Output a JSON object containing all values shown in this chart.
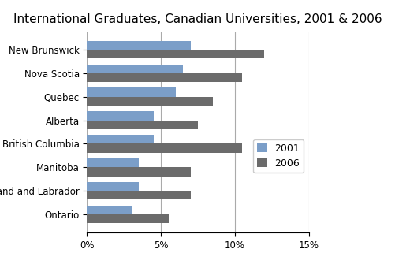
{
  "title": "International Graduates, Canadian Universities, 2001 & 2006",
  "provinces": [
    "New Brunswick",
    "Nova Scotia",
    "Quebec",
    "Alberta",
    "British Columbia",
    "Manitoba",
    "Newfoundland and Labrador",
    "Ontario"
  ],
  "values_2001": [
    7.0,
    6.5,
    6.0,
    4.5,
    4.5,
    3.5,
    3.5,
    3.0
  ],
  "values_2006": [
    12.0,
    10.5,
    8.5,
    7.5,
    10.5,
    7.0,
    7.0,
    5.5
  ],
  "color_2001": "#7B9EC8",
  "color_2006": "#6B6B6B",
  "xlim": [
    0,
    15
  ],
  "xticks": [
    0,
    5,
    10,
    15
  ],
  "xtick_labels": [
    "0%",
    "5%",
    "10%",
    "15%"
  ],
  "legend_labels": [
    "2001",
    "2006"
  ],
  "bar_height": 0.38,
  "title_fontsize": 11,
  "tick_fontsize": 8.5,
  "legend_fontsize": 9,
  "background_color": "#FFFFFF"
}
